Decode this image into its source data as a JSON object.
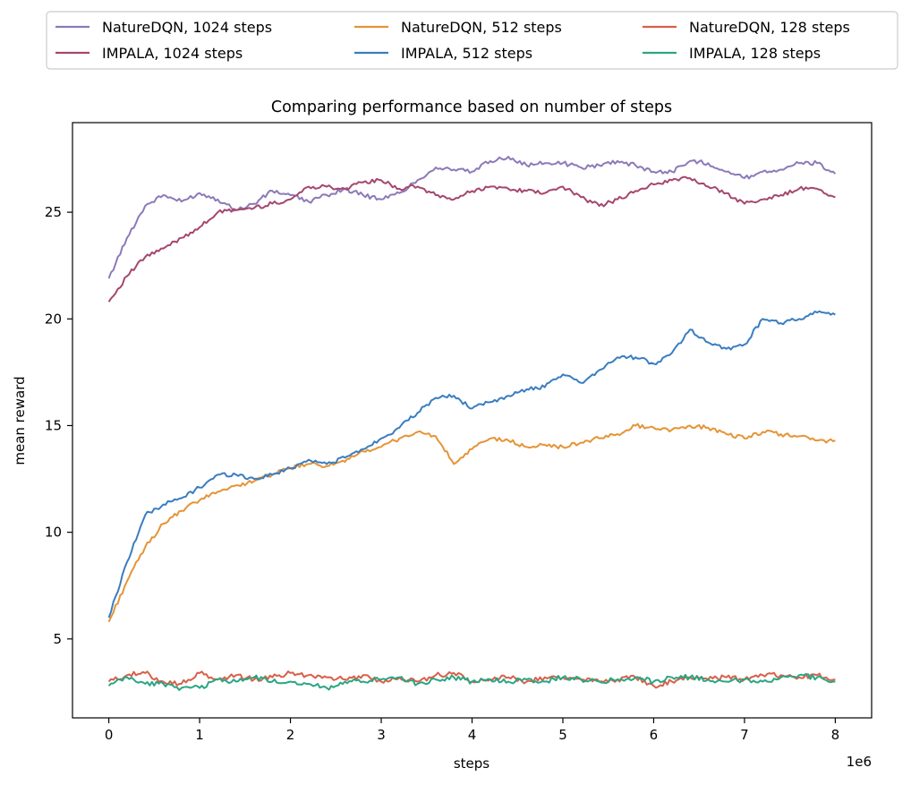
{
  "chart_data": {
    "type": "line",
    "title": "Comparing performance based on number of steps",
    "xlabel": "steps",
    "ylabel": "mean reward",
    "x_scale_label": "1e6",
    "xlim": [
      -0.4,
      8.4
    ],
    "ylim": [
      1.3,
      29.2
    ],
    "x_ticks": [
      0,
      1,
      2,
      3,
      4,
      5,
      6,
      7,
      8
    ],
    "x_tick_labels": [
      "0",
      "1",
      "2",
      "3",
      "4",
      "5",
      "6",
      "7",
      "8"
    ],
    "y_ticks": [
      5,
      10,
      15,
      20,
      25
    ],
    "y_tick_labels": [
      "5",
      "10",
      "15",
      "20",
      "25"
    ],
    "grid": false,
    "legend_position": "above plot, 3 columns",
    "x": [
      0.0,
      0.2,
      0.4,
      0.6,
      0.8,
      1.0,
      1.2,
      1.4,
      1.6,
      1.8,
      2.0,
      2.2,
      2.4,
      2.6,
      2.8,
      3.0,
      3.2,
      3.4,
      3.6,
      3.8,
      4.0,
      4.2,
      4.4,
      4.6,
      4.8,
      5.0,
      5.2,
      5.4,
      5.6,
      5.8,
      6.0,
      6.2,
      6.4,
      6.6,
      6.8,
      7.0,
      7.2,
      7.4,
      7.6,
      7.8,
      8.0
    ],
    "series": [
      {
        "name": "NatureDQN, 1024 steps",
        "color": "#8c7ab8",
        "values": [
          21.9,
          23.8,
          25.3,
          25.8,
          25.5,
          25.9,
          25.6,
          25.1,
          25.4,
          26.0,
          25.8,
          25.5,
          25.8,
          26.1,
          25.8,
          25.6,
          25.9,
          26.5,
          27.1,
          27.0,
          26.9,
          27.4,
          27.6,
          27.2,
          27.3,
          27.3,
          27.1,
          27.2,
          27.4,
          27.2,
          26.9,
          26.9,
          27.4,
          27.3,
          26.9,
          26.6,
          26.9,
          27.0,
          27.3,
          27.3,
          26.8
        ]
      },
      {
        "name": "IMPALA, 1024 steps",
        "color": "#a5476e",
        "values": [
          20.8,
          22.0,
          22.9,
          23.3,
          23.8,
          24.3,
          25.0,
          25.1,
          25.2,
          25.4,
          25.6,
          26.2,
          26.2,
          26.1,
          26.4,
          26.5,
          26.1,
          26.2,
          25.8,
          25.6,
          26.0,
          26.2,
          26.1,
          26.0,
          25.9,
          26.2,
          25.7,
          25.3,
          25.6,
          26.0,
          26.3,
          26.5,
          26.6,
          26.2,
          25.9,
          25.4,
          25.6,
          25.8,
          26.1,
          26.1,
          25.7
        ]
      },
      {
        "name": "NatureDQN, 512 steps",
        "color": "#e59436",
        "values": [
          5.8,
          7.7,
          9.3,
          10.4,
          11.0,
          11.5,
          11.9,
          12.2,
          12.4,
          12.7,
          13.0,
          13.2,
          13.1,
          13.3,
          13.8,
          14.0,
          14.4,
          14.7,
          14.5,
          13.2,
          13.9,
          14.4,
          14.3,
          14.0,
          14.1,
          14.0,
          14.2,
          14.4,
          14.6,
          15.0,
          14.9,
          14.8,
          15.0,
          14.9,
          14.6,
          14.4,
          14.7,
          14.6,
          14.5,
          14.3,
          14.3
        ]
      },
      {
        "name": "IMPALA, 512 steps",
        "color": "#3a7dc0",
        "values": [
          6.0,
          8.6,
          10.8,
          11.3,
          11.6,
          12.1,
          12.7,
          12.7,
          12.5,
          12.7,
          13.0,
          13.4,
          13.2,
          13.5,
          13.9,
          14.4,
          14.9,
          15.6,
          16.3,
          16.4,
          15.8,
          16.1,
          16.4,
          16.7,
          16.8,
          17.4,
          17.0,
          17.6,
          18.2,
          18.2,
          17.9,
          18.4,
          19.5,
          18.9,
          18.6,
          18.8,
          20.0,
          19.8,
          20.0,
          20.3,
          20.2
        ]
      },
      {
        "name": "NatureDQN, 128 steps",
        "color": "#d9604a",
        "values": [
          3.0,
          3.3,
          3.4,
          3.0,
          2.9,
          3.4,
          3.1,
          3.3,
          3.1,
          3.2,
          3.4,
          3.3,
          3.2,
          3.1,
          3.3,
          3.0,
          3.2,
          3.0,
          3.3,
          3.4,
          3.0,
          3.1,
          3.2,
          3.0,
          3.2,
          3.2,
          3.1,
          3.0,
          3.1,
          3.2,
          2.8,
          3.0,
          3.2,
          3.1,
          3.2,
          3.1,
          3.3,
          3.3,
          3.2,
          3.3,
          3.1
        ]
      },
      {
        "name": "IMPALA, 128 steps",
        "color": "#2aa683",
        "values": [
          2.8,
          3.2,
          2.9,
          2.9,
          2.7,
          2.7,
          3.1,
          3.0,
          3.2,
          3.0,
          3.0,
          2.9,
          2.7,
          3.0,
          3.0,
          3.1,
          3.2,
          2.9,
          3.1,
          3.2,
          3.0,
          3.1,
          3.0,
          3.1,
          3.0,
          3.2,
          3.1,
          3.0,
          3.1,
          3.2,
          3.0,
          3.2,
          3.2,
          3.1,
          3.0,
          3.1,
          3.0,
          3.2,
          3.3,
          3.2,
          3.0
        ]
      }
    ]
  }
}
